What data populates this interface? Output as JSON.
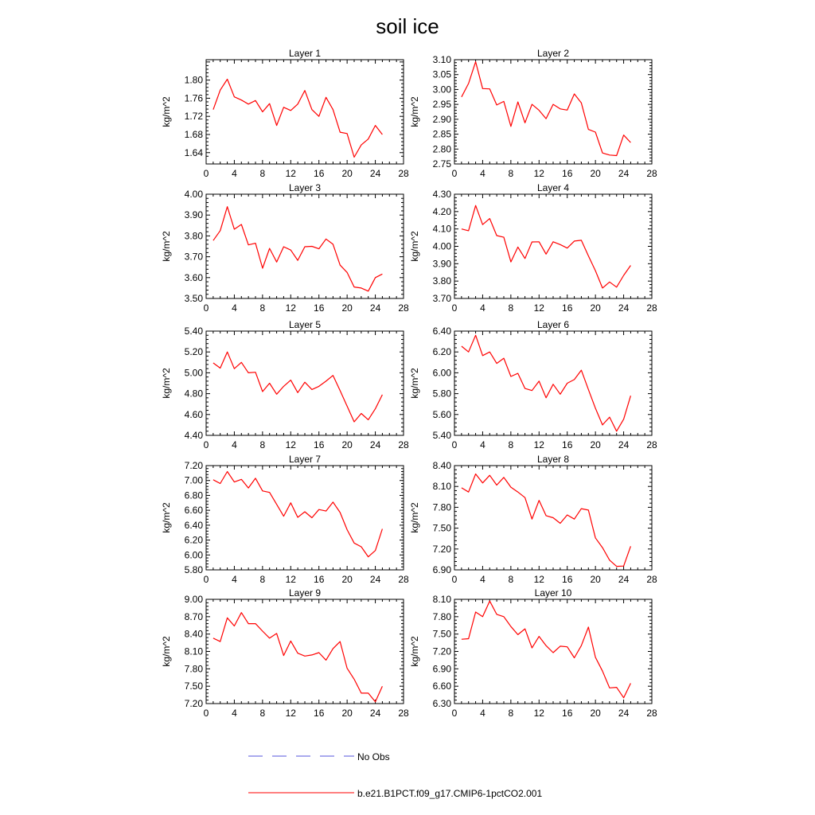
{
  "figure": {
    "title": "soil ice",
    "colors": {
      "model": "#ff0000",
      "obs": "#5555dd",
      "axis": "#000000"
    },
    "legend": [
      {
        "label": "No Obs",
        "style": "dashed",
        "color": "#5555dd"
      },
      {
        "label": "b.e21.B1PCT.f09_g17.CMIP6-1pctCO2.001",
        "style": "solid",
        "color": "#ff0000"
      }
    ]
  },
  "chart_data": [
    {
      "type": "line",
      "title": "Layer 1",
      "ylabel": "kg/m^2",
      "xlim": [
        0,
        28
      ],
      "xticks": [
        0,
        4,
        8,
        12,
        16,
        20,
        24,
        28
      ],
      "ylim": [
        1.615,
        1.845
      ],
      "yticks": [
        1.64,
        1.68,
        1.72,
        1.76,
        1.8
      ],
      "ytick_labels": [
        "1.64",
        "1.68",
        "1.72",
        "1.76",
        "1.80"
      ],
      "series": [
        {
          "name": "b.e21.B1PCT.f09_g17.CMIP6-1pctCO2.001",
          "x": [
            1,
            2,
            3,
            4,
            5,
            6,
            7,
            8,
            9,
            10,
            11,
            12,
            13,
            14,
            15,
            16,
            17,
            18,
            19,
            20,
            21,
            22,
            23,
            24,
            25
          ],
          "y": [
            1.735,
            1.778,
            1.802,
            1.763,
            1.756,
            1.747,
            1.755,
            1.73,
            1.748,
            1.7,
            1.74,
            1.733,
            1.747,
            1.777,
            1.735,
            1.72,
            1.762,
            1.735,
            1.685,
            1.682,
            1.63,
            1.657,
            1.67,
            1.7,
            1.68
          ]
        }
      ]
    },
    {
      "type": "line",
      "title": "Layer 2",
      "ylabel": "kg/m^2",
      "xlim": [
        0,
        28
      ],
      "xticks": [
        0,
        4,
        8,
        12,
        16,
        20,
        24,
        28
      ],
      "ylim": [
        2.75,
        3.1
      ],
      "yticks": [
        2.75,
        2.8,
        2.85,
        2.9,
        2.95,
        3.0,
        3.05,
        3.1
      ],
      "ytick_labels": [
        "2.75",
        "2.80",
        "2.85",
        "2.90",
        "2.95",
        "3.00",
        "3.05",
        "3.10"
      ],
      "series": [
        {
          "name": "b.e21.B1PCT.f09_g17.CMIP6-1pctCO2.001",
          "x": [
            1,
            2,
            3,
            4,
            5,
            6,
            7,
            8,
            9,
            10,
            11,
            12,
            13,
            14,
            15,
            16,
            17,
            18,
            19,
            20,
            21,
            22,
            23,
            24,
            25
          ],
          "y": [
            2.975,
            3.02,
            3.093,
            3.003,
            3.002,
            2.948,
            2.96,
            2.876,
            2.958,
            2.888,
            2.95,
            2.93,
            2.902,
            2.95,
            2.935,
            2.931,
            2.985,
            2.955,
            2.866,
            2.857,
            2.787,
            2.78,
            2.778,
            2.847,
            2.822
          ]
        }
      ]
    },
    {
      "type": "line",
      "title": "Layer 3",
      "ylabel": "kg/m^2",
      "xlim": [
        0,
        28
      ],
      "xticks": [
        0,
        4,
        8,
        12,
        16,
        20,
        24,
        28
      ],
      "ylim": [
        3.5,
        4.0
      ],
      "yticks": [
        3.5,
        3.6,
        3.7,
        3.8,
        3.9,
        4.0
      ],
      "ytick_labels": [
        "3.50",
        "3.60",
        "3.70",
        "3.80",
        "3.90",
        "4.00"
      ],
      "series": [
        {
          "name": "b.e21.B1PCT.f09_g17.CMIP6-1pctCO2.001",
          "x": [
            1,
            2,
            3,
            4,
            5,
            6,
            7,
            8,
            9,
            10,
            11,
            12,
            13,
            14,
            15,
            16,
            17,
            18,
            19,
            20,
            21,
            22,
            23,
            24,
            25
          ],
          "y": [
            3.778,
            3.825,
            3.94,
            3.832,
            3.855,
            3.757,
            3.765,
            3.645,
            3.74,
            3.675,
            3.748,
            3.732,
            3.683,
            3.748,
            3.75,
            3.738,
            3.785,
            3.76,
            3.66,
            3.625,
            3.555,
            3.55,
            3.535,
            3.6,
            3.617
          ]
        }
      ]
    },
    {
      "type": "line",
      "title": "Layer 4",
      "ylabel": "kg/m^2",
      "xlim": [
        0,
        28
      ],
      "xticks": [
        0,
        4,
        8,
        12,
        16,
        20,
        24,
        28
      ],
      "ylim": [
        3.7,
        4.3
      ],
      "yticks": [
        3.7,
        3.8,
        3.9,
        4.0,
        4.1,
        4.2,
        4.3
      ],
      "ytick_labels": [
        "3.70",
        "3.80",
        "3.90",
        "4.00",
        "4.10",
        "4.20",
        "4.30"
      ],
      "series": [
        {
          "name": "b.e21.B1PCT.f09_g17.CMIP6-1pctCO2.001",
          "x": [
            1,
            2,
            3,
            4,
            5,
            6,
            7,
            8,
            9,
            10,
            11,
            12,
            13,
            14,
            15,
            16,
            17,
            18,
            19,
            20,
            21,
            22,
            23,
            24,
            25
          ],
          "y": [
            4.1,
            4.09,
            4.235,
            4.125,
            4.16,
            4.062,
            4.052,
            3.91,
            3.996,
            3.93,
            4.025,
            4.026,
            3.955,
            4.026,
            4.01,
            3.99,
            4.03,
            4.035,
            3.945,
            3.86,
            3.76,
            3.795,
            3.765,
            3.833,
            3.89
          ]
        }
      ]
    },
    {
      "type": "line",
      "title": "Layer 5",
      "ylabel": "kg/m^2",
      "xlim": [
        0,
        28
      ],
      "xticks": [
        0,
        4,
        8,
        12,
        16,
        20,
        24,
        28
      ],
      "ylim": [
        4.4,
        5.4
      ],
      "yticks": [
        4.4,
        4.6,
        4.8,
        5.0,
        5.2,
        5.4
      ],
      "ytick_labels": [
        "4.40",
        "4.60",
        "4.80",
        "5.00",
        "5.20",
        "5.40"
      ],
      "series": [
        {
          "name": "b.e21.B1PCT.f09_g17.CMIP6-1pctCO2.001",
          "x": [
            1,
            2,
            3,
            4,
            5,
            6,
            7,
            8,
            9,
            10,
            11,
            12,
            13,
            14,
            15,
            16,
            17,
            18,
            19,
            20,
            21,
            22,
            23,
            24,
            25
          ],
          "y": [
            5.095,
            5.045,
            5.2,
            5.04,
            5.1,
            5.0,
            5.005,
            4.82,
            4.9,
            4.795,
            4.87,
            4.93,
            4.81,
            4.91,
            4.84,
            4.87,
            4.92,
            4.975,
            4.83,
            4.68,
            4.53,
            4.61,
            4.55,
            4.655,
            4.79
          ]
        }
      ]
    },
    {
      "type": "line",
      "title": "Layer 6",
      "ylabel": "kg/m^2",
      "xlim": [
        0,
        28
      ],
      "xticks": [
        0,
        4,
        8,
        12,
        16,
        20,
        24,
        28
      ],
      "ylim": [
        5.4,
        6.4
      ],
      "yticks": [
        5.4,
        5.6,
        5.8,
        6.0,
        6.2,
        6.4
      ],
      "ytick_labels": [
        "5.40",
        "5.60",
        "5.80",
        "6.00",
        "6.20",
        "6.40"
      ],
      "series": [
        {
          "name": "b.e21.B1PCT.f09_g17.CMIP6-1pctCO2.001",
          "x": [
            1,
            2,
            3,
            4,
            5,
            6,
            7,
            8,
            9,
            10,
            11,
            12,
            13,
            14,
            15,
            16,
            17,
            18,
            19,
            20,
            21,
            22,
            23,
            24,
            25
          ],
          "y": [
            6.255,
            6.2,
            6.36,
            6.165,
            6.2,
            6.09,
            6.14,
            5.965,
            5.995,
            5.85,
            5.83,
            5.92,
            5.76,
            5.89,
            5.795,
            5.9,
            5.935,
            6.025,
            5.84,
            5.66,
            5.5,
            5.575,
            5.44,
            5.555,
            5.78
          ]
        }
      ]
    },
    {
      "type": "line",
      "title": "Layer 7",
      "ylabel": "kg/m^2",
      "xlim": [
        0,
        28
      ],
      "xticks": [
        0,
        4,
        8,
        12,
        16,
        20,
        24,
        28
      ],
      "ylim": [
        5.8,
        7.2
      ],
      "yticks": [
        5.8,
        6.0,
        6.2,
        6.4,
        6.6,
        6.8,
        7.0,
        7.2
      ],
      "ytick_labels": [
        "5.80",
        "6.00",
        "6.20",
        "6.40",
        "6.60",
        "6.80",
        "7.00",
        "7.20"
      ],
      "series": [
        {
          "name": "b.e21.B1PCT.f09_g17.CMIP6-1pctCO2.001",
          "x": [
            1,
            2,
            3,
            4,
            5,
            6,
            7,
            8,
            9,
            10,
            11,
            12,
            13,
            14,
            15,
            16,
            17,
            18,
            19,
            20,
            21,
            22,
            23,
            24,
            25
          ],
          "y": [
            7.01,
            6.96,
            7.12,
            6.98,
            7.015,
            6.9,
            7.03,
            6.86,
            6.84,
            6.68,
            6.52,
            6.7,
            6.505,
            6.58,
            6.5,
            6.61,
            6.59,
            6.71,
            6.57,
            6.34,
            6.16,
            6.11,
            5.975,
            6.06,
            6.35
          ]
        }
      ]
    },
    {
      "type": "line",
      "title": "Layer 8",
      "ylabel": "kg/m^2",
      "xlim": [
        0,
        28
      ],
      "xticks": [
        0,
        4,
        8,
        12,
        16,
        20,
        24,
        28
      ],
      "ylim": [
        6.9,
        8.4
      ],
      "yticks": [
        6.9,
        7.2,
        7.5,
        7.8,
        8.1,
        8.4
      ],
      "ytick_labels": [
        "6.90",
        "7.20",
        "7.50",
        "7.80",
        "8.10",
        "8.40"
      ],
      "series": [
        {
          "name": "b.e21.B1PCT.f09_g17.CMIP6-1pctCO2.001",
          "x": [
            1,
            2,
            3,
            4,
            5,
            6,
            7,
            8,
            9,
            10,
            11,
            12,
            13,
            14,
            15,
            16,
            17,
            18,
            19,
            20,
            21,
            22,
            23,
            24,
            25
          ],
          "y": [
            8.08,
            8.02,
            8.28,
            8.15,
            8.26,
            8.12,
            8.23,
            8.09,
            8.02,
            7.94,
            7.63,
            7.9,
            7.68,
            7.65,
            7.57,
            7.69,
            7.63,
            7.78,
            7.76,
            7.36,
            7.22,
            7.04,
            6.95,
            6.955,
            7.24
          ]
        }
      ]
    },
    {
      "type": "line",
      "title": "Layer 9",
      "ylabel": "kg/m^2",
      "xlim": [
        0,
        28
      ],
      "xticks": [
        0,
        4,
        8,
        12,
        16,
        20,
        24,
        28
      ],
      "ylim": [
        7.2,
        9.0
      ],
      "yticks": [
        7.2,
        7.5,
        7.8,
        8.1,
        8.4,
        8.7,
        9.0
      ],
      "ytick_labels": [
        "7.20",
        "7.50",
        "7.80",
        "8.10",
        "8.40",
        "8.70",
        "9.00"
      ],
      "series": [
        {
          "name": "b.e21.B1PCT.f09_g17.CMIP6-1pctCO2.001",
          "x": [
            1,
            2,
            3,
            4,
            5,
            6,
            7,
            8,
            9,
            10,
            11,
            12,
            13,
            14,
            15,
            16,
            17,
            18,
            19,
            20,
            21,
            22,
            23,
            24,
            25
          ],
          "y": [
            8.33,
            8.27,
            8.68,
            8.54,
            8.77,
            8.58,
            8.58,
            8.45,
            8.33,
            8.41,
            8.03,
            8.28,
            8.07,
            8.02,
            8.04,
            8.08,
            7.95,
            8.15,
            8.27,
            7.81,
            7.62,
            7.38,
            7.38,
            7.23,
            7.5
          ]
        }
      ]
    },
    {
      "type": "line",
      "title": "Layer 10",
      "ylabel": "kg/m^2",
      "xlim": [
        0,
        28
      ],
      "xticks": [
        0,
        4,
        8,
        12,
        16,
        20,
        24,
        28
      ],
      "ylim": [
        6.3,
        8.1
      ],
      "yticks": [
        6.3,
        6.6,
        6.9,
        7.2,
        7.5,
        7.8,
        8.1
      ],
      "ytick_labels": [
        "6.30",
        "6.60",
        "6.90",
        "7.20",
        "7.50",
        "7.80",
        "8.10"
      ],
      "series": [
        {
          "name": "b.e21.B1PCT.f09_g17.CMIP6-1pctCO2.001",
          "x": [
            1,
            2,
            3,
            4,
            5,
            6,
            7,
            8,
            9,
            10,
            11,
            12,
            13,
            14,
            15,
            16,
            17,
            18,
            19,
            20,
            21,
            22,
            23,
            24,
            25
          ],
          "y": [
            7.41,
            7.42,
            7.88,
            7.8,
            8.07,
            7.84,
            7.8,
            7.63,
            7.49,
            7.59,
            7.26,
            7.46,
            7.3,
            7.18,
            7.29,
            7.28,
            7.09,
            7.3,
            7.62,
            7.1,
            6.86,
            6.57,
            6.58,
            6.4,
            6.65
          ]
        }
      ]
    }
  ]
}
